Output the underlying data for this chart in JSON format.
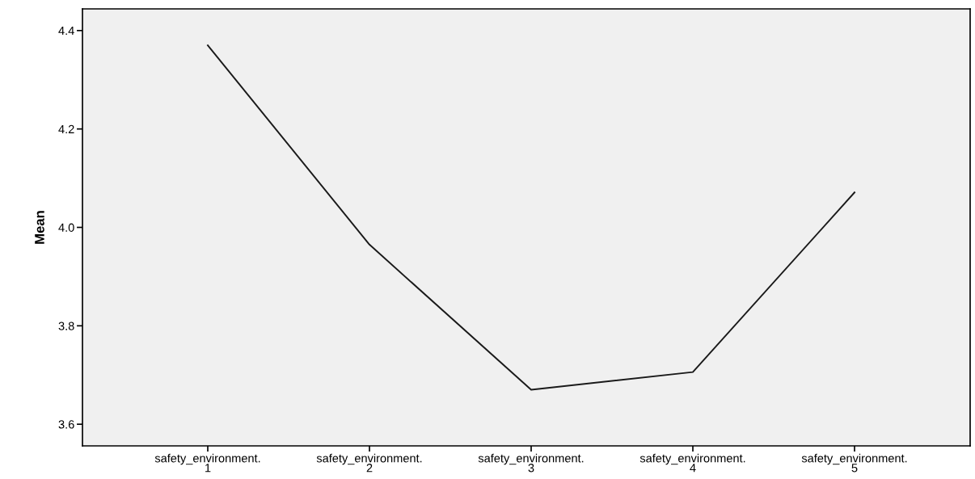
{
  "chart_data": {
    "type": "line",
    "ylabel": "Mean",
    "categories": [
      "safety_environment.\n1",
      "safety_environment.\n2",
      "safety_environment.\n3",
      "safety_environment.\n4",
      "safety_environment.\n5"
    ],
    "series": [
      {
        "color": "#1a1a1a",
        "values": [
          4.37,
          3.965,
          3.67,
          3.706,
          4.071
        ]
      }
    ],
    "ylim": [
      3.556,
      4.444
    ],
    "yticks": [
      {
        "value": 3.6,
        "label": "3.6"
      },
      {
        "value": 3.8,
        "label": "3.8"
      },
      {
        "value": 4.0,
        "label": "4.0"
      },
      {
        "value": 4.2,
        "label": "4.2"
      },
      {
        "value": 4.4,
        "label": "4.4"
      }
    ],
    "grid": false,
    "legend": false,
    "marker": "none",
    "line_style": "solid"
  }
}
